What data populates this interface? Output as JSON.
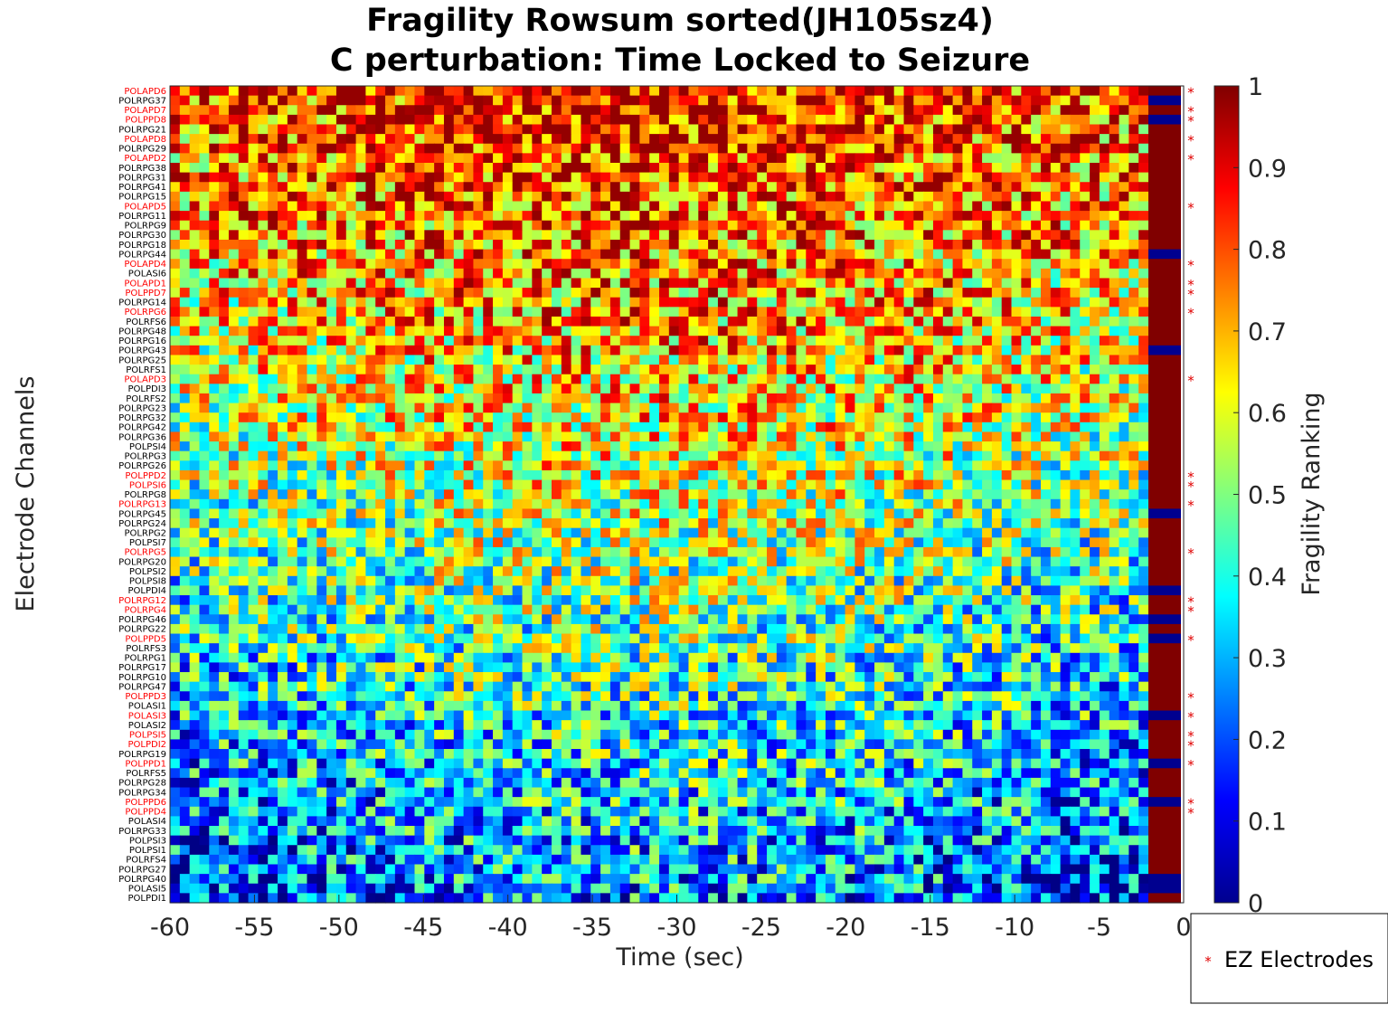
{
  "chart_data": {
    "type": "heatmap",
    "title": "Fragility Rowsum sorted(JH105sz4)",
    "subtitle": "C perturbation:  Time Locked to Seizure",
    "xlabel": "Time (sec)",
    "ylabel": "Electrode Channels",
    "xlim": [
      -60,
      0
    ],
    "x_ticks": [
      "-60",
      "-55",
      "-50",
      "-45",
      "-40",
      "-35",
      "-30",
      "-25",
      "-20",
      "-15",
      "-10",
      "-5",
      "0"
    ],
    "colorbar": {
      "label": "Fragility Ranking",
      "colormap": "jet",
      "clim": [
        0,
        1
      ],
      "ticks": [
        "0",
        "0.1",
        "0.2",
        "0.3",
        "0.4",
        "0.5",
        "0.6",
        "0.7",
        "0.8",
        "0.9",
        "1"
      ]
    },
    "channels": [
      "POLAPD6",
      "POLRPG37",
      "POLAPD7",
      "POLPPD8",
      "POLRPG21",
      "POLAPD8",
      "POLRPG29",
      "POLAPD2",
      "POLRPG38",
      "POLRPG31",
      "POLRPG41",
      "POLRPG15",
      "POLAPD5",
      "POLRPG11",
      "POLRPG9",
      "POLRPG30",
      "POLRPG18",
      "POLRPG44",
      "POLAPD4",
      "POLASI6",
      "POLAPD1",
      "POLPPD7",
      "POLRPG14",
      "POLRPG6",
      "POLRFS6",
      "POLRPG48",
      "POLRPG16",
      "POLRPG43",
      "POLRPG25",
      "POLRFS1",
      "POLAPD3",
      "POLPDI3",
      "POLRFS2",
      "POLRPG23",
      "POLRPG32",
      "POLRPG42",
      "POLRPG36",
      "POLPSI4",
      "POLRPG3",
      "POLRPG26",
      "POLPPD2",
      "POLPSI6",
      "POLRPG8",
      "POLRPG13",
      "POLRPG45",
      "POLRPG24",
      "POLRPG2",
      "POLPSI7",
      "POLRPG5",
      "POLRPG20",
      "POLPSI2",
      "POLPSI8",
      "POLPDI4",
      "POLRPG12",
      "POLRPG4",
      "POLRPG46",
      "POLRPG22",
      "POLPPD5",
      "POLRFS3",
      "POLRPG1",
      "POLRPG17",
      "POLRPG10",
      "POLRPG47",
      "POLPPD3",
      "POLASI1",
      "POLASI3",
      "POLASI2",
      "POLPSI5",
      "POLPDI2",
      "POLRPG19",
      "POLPPD1",
      "POLRFS5",
      "POLRPG28",
      "POLRPG34",
      "POLPPD6",
      "POLPPD4",
      "POLASI4",
      "POLRPG33",
      "POLPSI3",
      "POLPSI1",
      "POLRFS4",
      "POLRPG27",
      "POLRPG40",
      "POLASI5",
      "POLPDI1"
    ],
    "ez_channels": [
      "POLAPD6",
      "POLAPD7",
      "POLPPD8",
      "POLAPD8",
      "POLAPD2",
      "POLAPD5",
      "POLAPD4",
      "POLAPD1",
      "POLPPD7",
      "POLRPG6",
      "POLAPD3",
      "POLPPD2",
      "POLPSI6",
      "POLRPG13",
      "POLRPG5",
      "POLRPG12",
      "POLRPG4",
      "POLPPD5",
      "POLPPD3",
      "POLASI3",
      "POLPSI5",
      "POLPDI2",
      "POLPPD1",
      "POLPPD6",
      "POLPPD4"
    ],
    "ez_indicator_low_rows": [
      "POLRPG37",
      "POLPPD8",
      "POLRPG44",
      "POLRPG43",
      "POLRPG45",
      "POLPDI4",
      "POLRPG46",
      "POLPPD5",
      "POLASI3",
      "POLPPD1",
      "POLPPD6",
      "POLRPG40",
      "POLASI5"
    ],
    "legend": {
      "entries": [
        "EZ Electrodes"
      ],
      "placement": "bottom-right outside"
    },
    "colors": {
      "ez_label": "#ff0000",
      "normal_label": "#000000",
      "ez_marker": "#e00000"
    }
  }
}
